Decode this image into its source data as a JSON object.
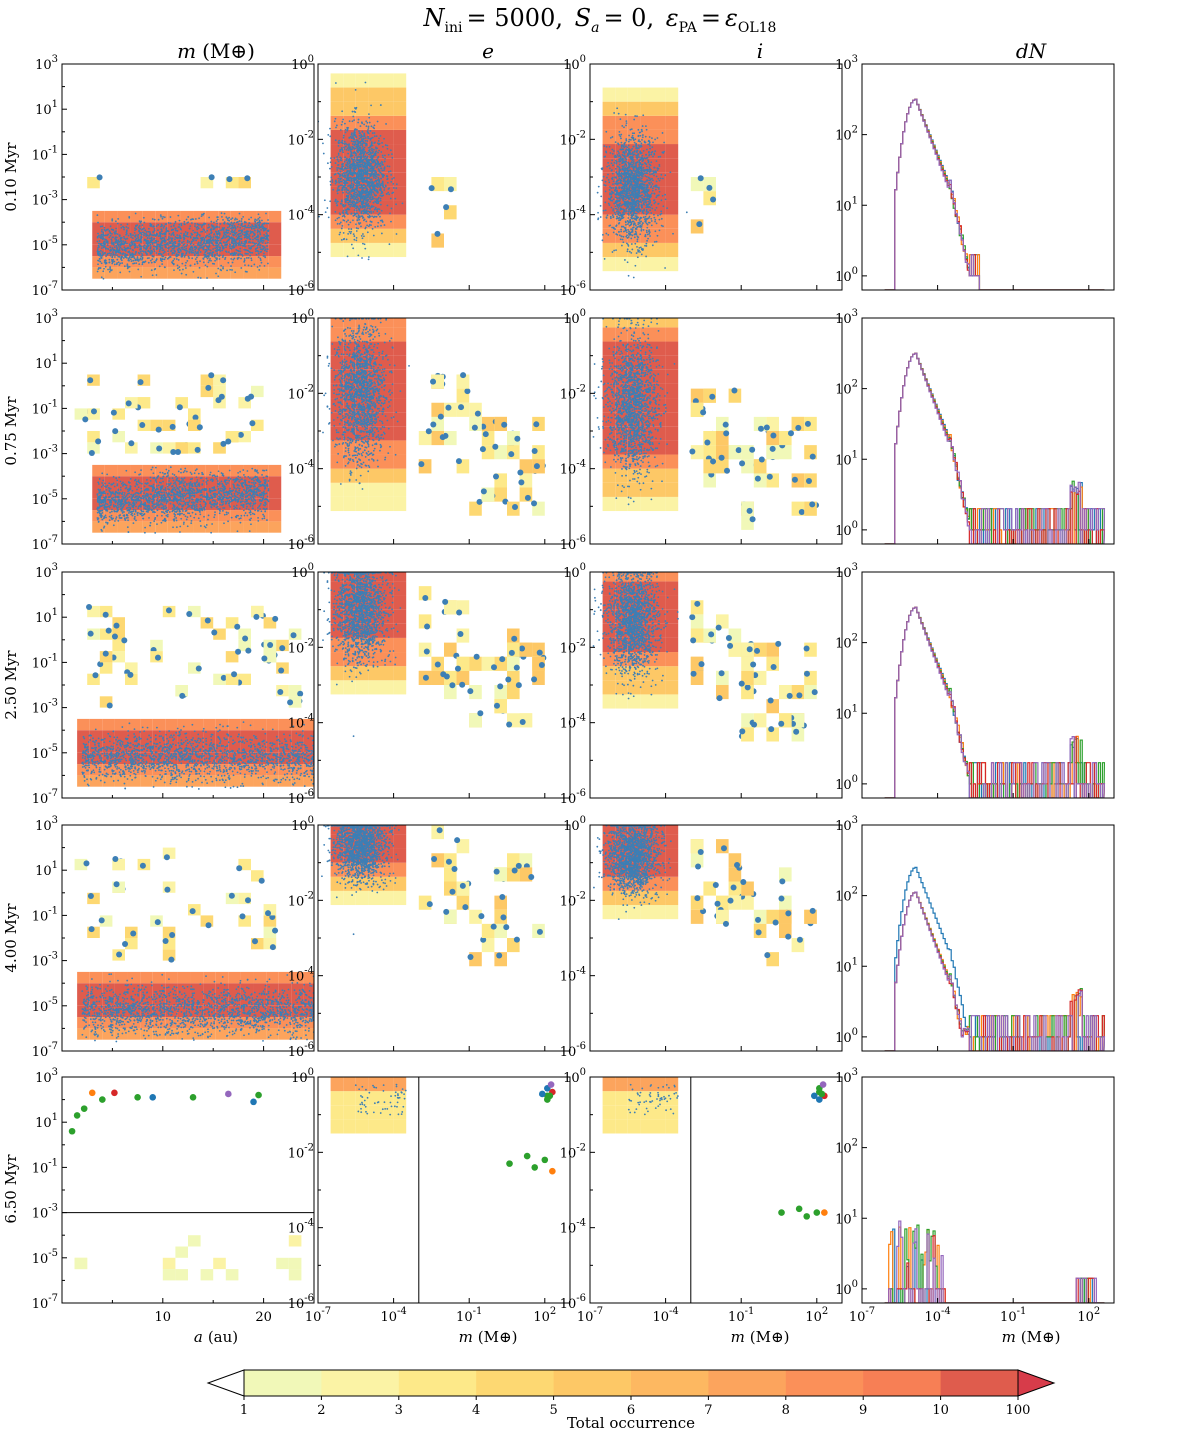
{
  "chart_data": {
    "type": "heatmap",
    "title": "N_ini = 5000, S_a = 0, ε_PA = ε_OL18",
    "title_parts": {
      "n_sym": "N",
      "n_sub": "ini",
      "n_val": "= 5000,",
      "s_sym": "S",
      "s_sub": "a",
      "s_val": "= 0,",
      "eps_sym": "ε",
      "eps_sub1": "PA",
      "eq": "=",
      "eps_sub2": "OL18"
    },
    "columns": [
      {
        "title_main": "m",
        "title_unit": "(M⊕)",
        "y_log_range": [
          -7,
          3
        ],
        "y_ticks": [
          "10",
          "10",
          "10",
          "10",
          "10",
          "10"
        ],
        "y_tick_exps": [
          "-7",
          "-5",
          "-3",
          "-1",
          "1",
          "3"
        ],
        "y_tick_values": [
          -7,
          -5,
          -3,
          -1,
          1,
          3
        ]
      },
      {
        "title_main": "e",
        "title_unit": "",
        "y_log_range": [
          -6,
          0
        ],
        "y_ticks": [
          "10",
          "10",
          "10",
          "10"
        ],
        "y_tick_exps": [
          "-6",
          "-4",
          "-2",
          "0"
        ],
        "y_tick_values": [
          -6,
          -4,
          -2,
          0
        ]
      },
      {
        "title_main": "i",
        "title_unit": "",
        "y_log_range": [
          -6,
          0
        ],
        "y_ticks": [
          "10",
          "10",
          "10",
          "10"
        ],
        "y_tick_exps": [
          "-6",
          "-4",
          "-2",
          "0"
        ],
        "y_tick_values": [
          -6,
          -4,
          -2,
          0
        ]
      },
      {
        "title_main": "dN",
        "title_unit": "",
        "y_log_range": [
          -0.2,
          3
        ],
        "y_ticks": [
          "10",
          "10",
          "10",
          "10"
        ],
        "y_tick_exps": [
          "0",
          "1",
          "2",
          "3"
        ],
        "y_tick_values": [
          0,
          1,
          2,
          3
        ]
      }
    ],
    "rows": [
      {
        "label": "0.10 Myr",
        "time": 0.1
      },
      {
        "label": "0.75 Myr",
        "time": 0.75
      },
      {
        "label": "2.50 Myr",
        "time": 2.5
      },
      {
        "label": "4.00 Myr",
        "time": 4.0
      },
      {
        "label": "6.50 Myr",
        "time": 6.5
      }
    ],
    "x_axes": {
      "col1": {
        "label_sym": "a",
        "label_unit": "(au)",
        "range": [
          0,
          25
        ],
        "ticks": [
          "10",
          "20"
        ],
        "tick_values": [
          10,
          20
        ]
      },
      "col2": {
        "label_sym": "m",
        "label_unit": "(M⊕)",
        "log_range": [
          -7,
          3
        ],
        "ticks": [
          "10",
          "10",
          "10",
          "10"
        ],
        "tick_exps": [
          "-7",
          "-4",
          "-1",
          "2"
        ],
        "tick_values": [
          -7,
          -4,
          -1,
          2
        ]
      },
      "col3": {
        "label_sym": "m",
        "label_unit": "(M⊕)",
        "log_range": [
          -7,
          3
        ],
        "ticks": [
          "10",
          "10",
          "10",
          "10"
        ],
        "tick_exps": [
          "-7",
          "-4",
          "-1",
          "2"
        ],
        "tick_values": [
          -7,
          -4,
          -1,
          2
        ]
      },
      "col4": {
        "label_sym": "m",
        "label_unit": "(M⊕)",
        "log_range": [
          -7,
          3
        ],
        "ticks": [
          "10",
          "10",
          "10",
          "10"
        ],
        "tick_exps": [
          "-7",
          "-4",
          "-1",
          "2"
        ],
        "tick_values": [
          -7,
          -4,
          -1,
          2
        ]
      }
    },
    "final_row_reference_lines": {
      "mass_threshold_log": -3
    },
    "dN_series_colors": [
      "#1f77b4",
      "#ff7f0e",
      "#2ca02c",
      "#d62728",
      "#9467bd"
    ],
    "scatter_color": "#3d7fb5",
    "final_planets": [
      {
        "a": 1.0,
        "logm": 0.6,
        "loge": -2.3,
        "logi": -3.6,
        "color": "#2ca02c"
      },
      {
        "a": 1.5,
        "logm": 1.3,
        "loge": -2.1,
        "logi": -3.5,
        "color": "#2ca02c"
      },
      {
        "a": 2.2,
        "logm": 1.6,
        "loge": -2.4,
        "logi": -3.7,
        "color": "#2ca02c"
      },
      {
        "a": 3.0,
        "logm": 2.3,
        "loge": -2.5,
        "logi": -3.6,
        "color": "#ff7f0e"
      },
      {
        "a": 4.0,
        "logm": 2.0,
        "loge": -2.2,
        "logi": -3.6,
        "color": "#2ca02c"
      },
      {
        "a": 5.2,
        "logm": 2.3,
        "loge": -0.4,
        "logi": -0.5,
        "color": "#d62728"
      },
      {
        "a": 7.5,
        "logm": 2.1,
        "loge": -0.5,
        "logi": -0.4,
        "color": "#2ca02c"
      },
      {
        "a": 9.0,
        "logm": 2.1,
        "loge": -0.3,
        "logi": -0.6,
        "color": "#1f77b4"
      },
      {
        "a": 13.0,
        "logm": 2.1,
        "loge": -0.6,
        "logi": -0.3,
        "color": "#2ca02c"
      },
      {
        "a": 16.5,
        "logm": 2.25,
        "loge": -0.2,
        "logi": -0.2,
        "color": "#9467bd"
      },
      {
        "a": 19.0,
        "logm": 1.9,
        "loge": -0.45,
        "logi": -0.5,
        "color": "#1f77b4"
      },
      {
        "a": 19.5,
        "logm": 2.2,
        "loge": -0.5,
        "logi": -0.45,
        "color": "#2ca02c"
      }
    ],
    "colorbar": {
      "label": "Total occurrence",
      "tick_labels": [
        "1",
        "2",
        "3",
        "4",
        "5",
        "6",
        "7",
        "8",
        "9",
        "10",
        "100"
      ],
      "bin_colors": [
        "#f1f8b8",
        "#fbf3a5",
        "#fde989",
        "#fdd872",
        "#fdc866",
        "#fdb861",
        "#fca45d",
        "#fb9059",
        "#f77f55",
        "#df5c4d"
      ]
    }
  }
}
